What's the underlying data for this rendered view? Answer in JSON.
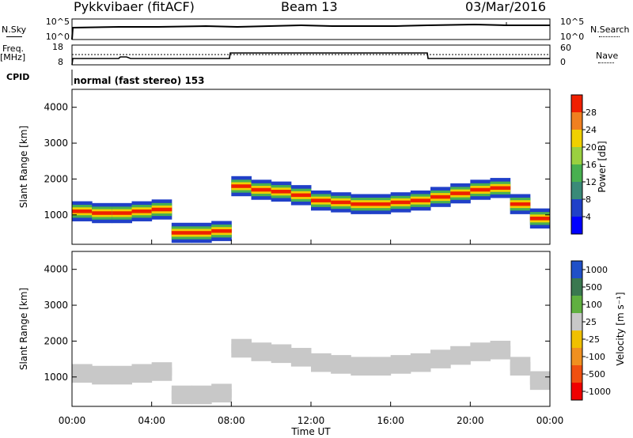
{
  "header": {
    "station": "Pykkvibaer (fitACF)",
    "beam": "Beam 13",
    "date": "03/Mar/2016"
  },
  "nsky": {
    "label": "N.Sky",
    "left_ticks": [
      "10^5",
      "10^0"
    ],
    "right_ticks": [
      "10^5",
      "10^0"
    ],
    "right_label": "N.Search"
  },
  "freq": {
    "label": "Freq.",
    "unit": "[MHz]",
    "left_ticks": [
      "18",
      "8"
    ],
    "right_ticks": [
      "60",
      "0"
    ],
    "right_label": "Nave"
  },
  "cpid": {
    "label": "CPID",
    "mode": "normal (fast stereo) 153"
  },
  "chart_data": [
    {
      "type": "heatmap",
      "title": "",
      "ylabel": "Slant Range [km]",
      "ylim": [
        180,
        4500
      ],
      "yticks": [
        "1000",
        "2000",
        "3000",
        "4000"
      ],
      "colorbar": {
        "label": "Power [dB]",
        "ticks": [
          "4",
          "8",
          "12",
          "16",
          "20",
          "24",
          "28"
        ],
        "colors": [
          "#0000ff",
          "#2040c8",
          "#3a8a78",
          "#48b050",
          "#9ad040",
          "#f0d000",
          "#f08020",
          "#f02000"
        ]
      },
      "x": [
        "00:00",
        "01:00",
        "02:00",
        "03:00",
        "04:00",
        "05:00",
        "06:00",
        "07:00",
        "08:00",
        "09:00",
        "10:00",
        "11:00",
        "12:00",
        "13:00",
        "14:00",
        "15:00",
        "16:00",
        "17:00",
        "18:00",
        "19:00",
        "20:00",
        "21:00",
        "22:00",
        "23:00"
      ],
      "series": [
        {
          "values": [
            1100,
            1050,
            1050,
            1100,
            1150,
            500,
            500,
            550,
            1800,
            1700,
            1650,
            1550,
            1400,
            1350,
            1300,
            1300,
            1350,
            1400,
            1500,
            1600,
            1700,
            1750,
            1300,
            900
          ]
        }
      ]
    },
    {
      "type": "heatmap",
      "title": "",
      "xlabel": "Time UT",
      "ylabel": "Slant Range [km]",
      "ylim": [
        180,
        4500
      ],
      "yticks": [
        "1000",
        "2000",
        "3000",
        "4000"
      ],
      "xticks": [
        "00:00",
        "04:00",
        "08:00",
        "12:00",
        "16:00",
        "20:00",
        "00:00"
      ],
      "colorbar": {
        "label": "Velocity [m s⁻¹]",
        "ticks": [
          "1000",
          "500",
          "100",
          "25",
          "-25",
          "-100",
          "-500",
          "-1000"
        ],
        "colors": [
          "#2050c8",
          "#3a7850",
          "#60b040",
          "#c8c8c8",
          "#f0c000",
          "#f09020",
          "#f05010",
          "#f00000"
        ]
      },
      "x": [
        "00:00",
        "01:00",
        "02:00",
        "03:00",
        "04:00",
        "05:00",
        "06:00",
        "07:00",
        "08:00",
        "09:00",
        "10:00",
        "11:00",
        "12:00",
        "13:00",
        "14:00",
        "15:00",
        "16:00",
        "17:00",
        "18:00",
        "19:00",
        "20:00",
        "21:00",
        "22:00",
        "23:00"
      ],
      "series": [
        {
          "values": [
            1100,
            1050,
            1050,
            1100,
            1150,
            500,
            500,
            550,
            1800,
            1700,
            1650,
            1550,
            1400,
            1350,
            1300,
            1300,
            1350,
            1400,
            1500,
            1600,
            1700,
            1750,
            1300,
            900
          ]
        }
      ]
    }
  ]
}
